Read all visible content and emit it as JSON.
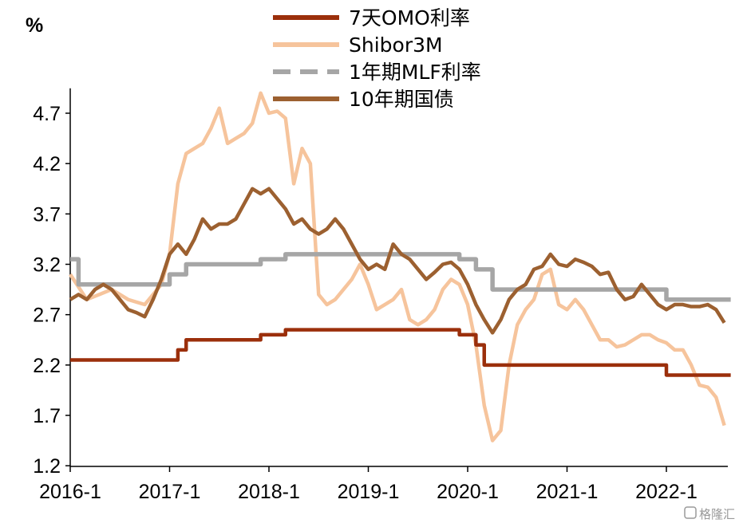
{
  "chart_data": {
    "type": "line",
    "title": "",
    "ylabel": "%",
    "xlabel": "",
    "ylim": [
      1.2,
      4.9
    ],
    "xlim": [
      "2016-01",
      "2022-09"
    ],
    "yticks": [
      "1.2",
      "1.7",
      "2.2",
      "2.7",
      "3.2",
      "3.7",
      "4.2",
      "4.7"
    ],
    "xticks": [
      "2016-1",
      "2017-1",
      "2018-1",
      "2019-1",
      "2020-1",
      "2021-1",
      "2022-1"
    ],
    "grid": false,
    "legend_position": "top-center",
    "series": [
      {
        "name": "7天OMO利率",
        "color": "#9b2f0b",
        "style": "step",
        "points": [
          [
            "2016-01",
            2.25
          ],
          [
            "2017-01",
            2.25
          ],
          [
            "2017-02",
            2.35
          ],
          [
            "2017-03",
            2.45
          ],
          [
            "2017-12",
            2.5
          ],
          [
            "2018-03",
            2.55
          ],
          [
            "2019-12",
            2.5
          ],
          [
            "2020-02",
            2.4
          ],
          [
            "2020-03",
            2.2
          ],
          [
            "2022-01",
            2.1
          ],
          [
            "2022-08",
            2.1
          ]
        ]
      },
      {
        "name": "Shibor3M",
        "color": "#f6c49c",
        "style": "line",
        "points": [
          [
            "2016-01",
            3.1
          ],
          [
            "2016-03",
            2.85
          ],
          [
            "2016-06",
            2.95
          ],
          [
            "2016-08",
            2.85
          ],
          [
            "2016-10",
            2.8
          ],
          [
            "2016-12",
            3.0
          ],
          [
            "2017-01",
            3.3
          ],
          [
            "2017-02",
            4.0
          ],
          [
            "2017-03",
            4.3
          ],
          [
            "2017-04",
            4.35
          ],
          [
            "2017-05",
            4.4
          ],
          [
            "2017-06",
            4.55
          ],
          [
            "2017-07",
            4.75
          ],
          [
            "2017-08",
            4.4
          ],
          [
            "2017-09",
            4.45
          ],
          [
            "2017-10",
            4.5
          ],
          [
            "2017-11",
            4.6
          ],
          [
            "2017-12",
            4.9
          ],
          [
            "2018-01",
            4.7
          ],
          [
            "2018-02",
            4.72
          ],
          [
            "2018-03",
            4.65
          ],
          [
            "2018-04",
            4.0
          ],
          [
            "2018-05",
            4.35
          ],
          [
            "2018-06",
            4.2
          ],
          [
            "2018-07",
            2.9
          ],
          [
            "2018-08",
            2.8
          ],
          [
            "2018-09",
            2.85
          ],
          [
            "2018-10",
            2.95
          ],
          [
            "2018-11",
            3.05
          ],
          [
            "2018-12",
            3.2
          ],
          [
            "2019-01",
            3.0
          ],
          [
            "2019-02",
            2.75
          ],
          [
            "2019-03",
            2.8
          ],
          [
            "2019-04",
            2.85
          ],
          [
            "2019-05",
            2.95
          ],
          [
            "2019-06",
            2.65
          ],
          [
            "2019-07",
            2.6
          ],
          [
            "2019-08",
            2.65
          ],
          [
            "2019-09",
            2.75
          ],
          [
            "2019-10",
            2.95
          ],
          [
            "2019-11",
            3.05
          ],
          [
            "2019-12",
            3.0
          ],
          [
            "2020-01",
            2.8
          ],
          [
            "2020-02",
            2.4
          ],
          [
            "2020-03",
            1.8
          ],
          [
            "2020-04",
            1.45
          ],
          [
            "2020-05",
            1.55
          ],
          [
            "2020-06",
            2.2
          ],
          [
            "2020-07",
            2.6
          ],
          [
            "2020-08",
            2.75
          ],
          [
            "2020-09",
            2.85
          ],
          [
            "2020-10",
            3.1
          ],
          [
            "2020-11",
            3.15
          ],
          [
            "2020-12",
            2.8
          ],
          [
            "2021-01",
            2.75
          ],
          [
            "2021-02",
            2.85
          ],
          [
            "2021-03",
            2.75
          ],
          [
            "2021-04",
            2.6
          ],
          [
            "2021-05",
            2.45
          ],
          [
            "2021-06",
            2.45
          ],
          [
            "2021-07",
            2.38
          ],
          [
            "2021-08",
            2.4
          ],
          [
            "2021-09",
            2.45
          ],
          [
            "2021-10",
            2.5
          ],
          [
            "2021-11",
            2.5
          ],
          [
            "2021-12",
            2.45
          ],
          [
            "2022-01",
            2.42
          ],
          [
            "2022-02",
            2.35
          ],
          [
            "2022-03",
            2.35
          ],
          [
            "2022-04",
            2.2
          ],
          [
            "2022-05",
            2.0
          ],
          [
            "2022-06",
            1.98
          ],
          [
            "2022-07",
            1.88
          ],
          [
            "2022-08",
            1.6
          ]
        ]
      },
      {
        "name": "1年期MLF利率",
        "color": "#a6a6a6",
        "style": "step",
        "points": [
          [
            "2016-01",
            3.25
          ],
          [
            "2016-02",
            3.0
          ],
          [
            "2017-01",
            3.1
          ],
          [
            "2017-03",
            3.2
          ],
          [
            "2017-12",
            3.25
          ],
          [
            "2018-03",
            3.3
          ],
          [
            "2019-12",
            3.25
          ],
          [
            "2020-02",
            3.15
          ],
          [
            "2020-04",
            2.95
          ],
          [
            "2022-01",
            2.85
          ],
          [
            "2022-08",
            2.85
          ]
        ]
      },
      {
        "name": "10年期国债",
        "color": "#9c6030",
        "style": "line",
        "points": [
          [
            "2016-01",
            2.85
          ],
          [
            "2016-02",
            2.9
          ],
          [
            "2016-03",
            2.85
          ],
          [
            "2016-04",
            2.95
          ],
          [
            "2016-05",
            3.0
          ],
          [
            "2016-06",
            2.95
          ],
          [
            "2016-07",
            2.85
          ],
          [
            "2016-08",
            2.75
          ],
          [
            "2016-09",
            2.72
          ],
          [
            "2016-10",
            2.68
          ],
          [
            "2016-11",
            2.85
          ],
          [
            "2016-12",
            3.05
          ],
          [
            "2017-01",
            3.3
          ],
          [
            "2017-02",
            3.4
          ],
          [
            "2017-03",
            3.3
          ],
          [
            "2017-04",
            3.45
          ],
          [
            "2017-05",
            3.65
          ],
          [
            "2017-06",
            3.55
          ],
          [
            "2017-07",
            3.6
          ],
          [
            "2017-08",
            3.6
          ],
          [
            "2017-09",
            3.65
          ],
          [
            "2017-10",
            3.8
          ],
          [
            "2017-11",
            3.95
          ],
          [
            "2017-12",
            3.9
          ],
          [
            "2018-01",
            3.95
          ],
          [
            "2018-02",
            3.85
          ],
          [
            "2018-03",
            3.75
          ],
          [
            "2018-04",
            3.6
          ],
          [
            "2018-05",
            3.65
          ],
          [
            "2018-06",
            3.55
          ],
          [
            "2018-07",
            3.5
          ],
          [
            "2018-08",
            3.55
          ],
          [
            "2018-09",
            3.65
          ],
          [
            "2018-10",
            3.55
          ],
          [
            "2018-11",
            3.4
          ],
          [
            "2018-12",
            3.25
          ],
          [
            "2019-01",
            3.15
          ],
          [
            "2019-02",
            3.2
          ],
          [
            "2019-03",
            3.15
          ],
          [
            "2019-04",
            3.4
          ],
          [
            "2019-05",
            3.3
          ],
          [
            "2019-06",
            3.25
          ],
          [
            "2019-07",
            3.15
          ],
          [
            "2019-08",
            3.05
          ],
          [
            "2019-09",
            3.12
          ],
          [
            "2019-10",
            3.2
          ],
          [
            "2019-11",
            3.22
          ],
          [
            "2019-12",
            3.15
          ],
          [
            "2020-01",
            3.0
          ],
          [
            "2020-02",
            2.8
          ],
          [
            "2020-03",
            2.65
          ],
          [
            "2020-04",
            2.52
          ],
          [
            "2020-05",
            2.65
          ],
          [
            "2020-06",
            2.85
          ],
          [
            "2020-07",
            2.95
          ],
          [
            "2020-08",
            3.0
          ],
          [
            "2020-09",
            3.15
          ],
          [
            "2020-10",
            3.18
          ],
          [
            "2020-11",
            3.3
          ],
          [
            "2020-12",
            3.2
          ],
          [
            "2021-01",
            3.18
          ],
          [
            "2021-02",
            3.25
          ],
          [
            "2021-03",
            3.22
          ],
          [
            "2021-04",
            3.18
          ],
          [
            "2021-05",
            3.1
          ],
          [
            "2021-06",
            3.12
          ],
          [
            "2021-07",
            2.95
          ],
          [
            "2021-08",
            2.85
          ],
          [
            "2021-09",
            2.88
          ],
          [
            "2021-10",
            3.0
          ],
          [
            "2021-11",
            2.9
          ],
          [
            "2021-12",
            2.8
          ],
          [
            "2022-01",
            2.75
          ],
          [
            "2022-02",
            2.8
          ],
          [
            "2022-03",
            2.8
          ],
          [
            "2022-04",
            2.78
          ],
          [
            "2022-05",
            2.78
          ],
          [
            "2022-06",
            2.8
          ],
          [
            "2022-07",
            2.75
          ],
          [
            "2022-08",
            2.62
          ]
        ]
      }
    ]
  },
  "watermark": "格隆汇"
}
